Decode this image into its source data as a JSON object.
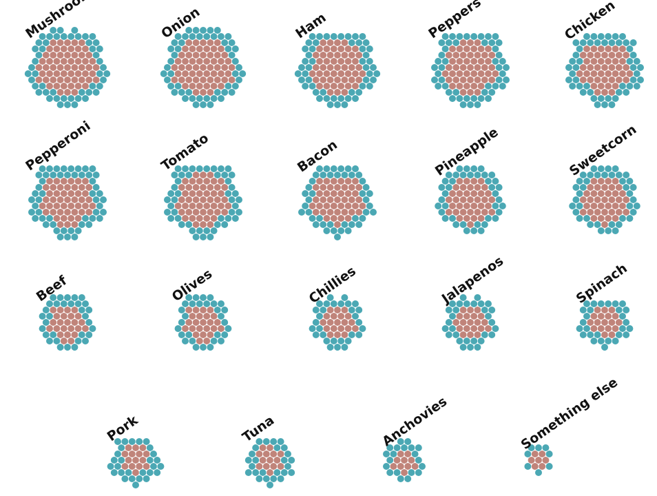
{
  "chart_data": {
    "type": "scatter",
    "title": "",
    "colors": {
      "inner": "#C0847A",
      "outer": "#4BA8B4"
    },
    "items": [
      {
        "label": "Mushrooms",
        "inner": 61,
        "outer": 50
      },
      {
        "label": "Onion",
        "inner": 61,
        "outer": 52
      },
      {
        "label": "Ham",
        "inner": 54,
        "outer": 52
      },
      {
        "label": "Peppers",
        "inner": 52,
        "outer": 50
      },
      {
        "label": "Chicken",
        "inner": 48,
        "outer": 50
      },
      {
        "label": "Pepperoni",
        "inner": 48,
        "outer": 52
      },
      {
        "label": "Tomato",
        "inner": 52,
        "outer": 48
      },
      {
        "label": "Bacon",
        "inner": 46,
        "outer": 44
      },
      {
        "label": "Pineapple",
        "inner": 40,
        "outer": 40
      },
      {
        "label": "Sweetcorn",
        "inner": 40,
        "outer": 40
      },
      {
        "label": "Beef",
        "inner": 24,
        "outer": 32
      },
      {
        "label": "Olives",
        "inner": 24,
        "outer": 30
      },
      {
        "label": "Chillies",
        "inner": 20,
        "outer": 30
      },
      {
        "label": "Jalapenos",
        "inner": 20,
        "outer": 30
      },
      {
        "label": "Spinach",
        "inner": 18,
        "outer": 28
      },
      {
        "label": "Pork",
        "inner": 15,
        "outer": 28
      },
      {
        "label": "Tuna",
        "inner": 14,
        "outer": 26
      },
      {
        "label": "Anchovies",
        "inner": 10,
        "outer": 20
      },
      {
        "label": "Something else",
        "inner": 7,
        "outer": 8
      }
    ]
  }
}
